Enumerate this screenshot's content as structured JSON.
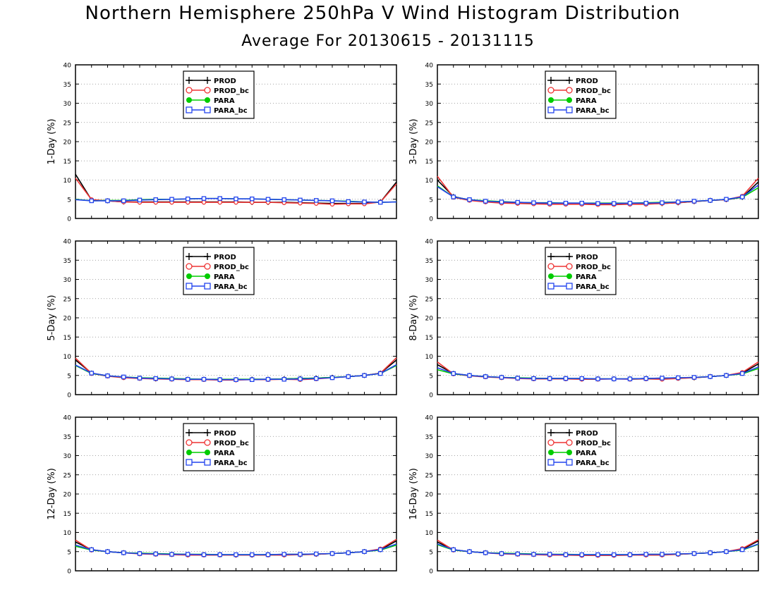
{
  "header": {
    "title": "Northern Hemisphere 250hPa V Wind Histogram Distribution",
    "subtitle": "Average For 20130615 - 20131115"
  },
  "legend_entries": [
    {
      "label": "PROD",
      "color": "#000000",
      "marker": "plus"
    },
    {
      "label": "PROD_bc",
      "color": "#ee3333",
      "marker": "open-circle"
    },
    {
      "label": "PARA",
      "color": "#00cc00",
      "marker": "filled-circle"
    },
    {
      "label": "PARA_bc",
      "color": "#2244ee",
      "marker": "open-square"
    }
  ],
  "chart_data": [
    {
      "type": "line",
      "ylabel": "1-Day (%)",
      "ylim": [
        0,
        40
      ],
      "yticks": [
        0,
        5,
        10,
        15,
        20,
        25,
        30,
        35,
        40
      ],
      "grid": "horizontal dotted",
      "legend_position": "top-left",
      "x": [
        1,
        2,
        3,
        4,
        5,
        6,
        7,
        8,
        9,
        10,
        11,
        12,
        13,
        14,
        15,
        16,
        17,
        18,
        19,
        20,
        21
      ],
      "series": [
        {
          "name": "PROD",
          "values": [
            11.5,
            4.8,
            4.6,
            4.3,
            4.3,
            4.3,
            4.3,
            4.3,
            4.3,
            4.3,
            4.3,
            4.2,
            4.2,
            4.2,
            4.1,
            4.0,
            3.9,
            3.9,
            3.9,
            4.3,
            9.5
          ]
        },
        {
          "name": "PROD_bc",
          "values": [
            10.5,
            4.9,
            4.6,
            4.3,
            4.2,
            4.2,
            4.2,
            4.2,
            4.2,
            4.2,
            4.2,
            4.2,
            4.2,
            4.1,
            4.0,
            3.9,
            3.7,
            3.8,
            3.8,
            4.3,
            9.0
          ]
        },
        {
          "name": "PARA",
          "values": [
            5.0,
            4.6,
            4.7,
            4.7,
            4.9,
            5.0,
            5.0,
            5.1,
            5.2,
            5.2,
            5.1,
            5.1,
            5.0,
            4.9,
            4.8,
            4.7,
            4.6,
            4.5,
            4.3,
            4.2,
            4.3
          ]
        },
        {
          "name": "PARA_bc",
          "values": [
            4.9,
            4.6,
            4.6,
            4.6,
            4.8,
            4.9,
            5.0,
            5.1,
            5.2,
            5.2,
            5.1,
            5.1,
            5.0,
            4.9,
            4.8,
            4.7,
            4.6,
            4.4,
            4.3,
            4.2,
            4.3
          ]
        }
      ]
    },
    {
      "type": "line",
      "ylabel": "3-Day (%)",
      "ylim": [
        0,
        40
      ],
      "yticks": [
        0,
        5,
        10,
        15,
        20,
        25,
        30,
        35,
        40
      ],
      "grid": "horizontal dotted",
      "legend_position": "top-left",
      "x": [
        1,
        2,
        3,
        4,
        5,
        6,
        7,
        8,
        9,
        10,
        11,
        12,
        13,
        14,
        15,
        16,
        17,
        18,
        19,
        20,
        21
      ],
      "series": [
        {
          "name": "PROD",
          "values": [
            10.0,
            5.7,
            4.8,
            4.4,
            4.1,
            4.0,
            3.9,
            3.8,
            3.8,
            3.8,
            3.7,
            3.7,
            3.8,
            3.8,
            3.9,
            4.1,
            4.4,
            4.7,
            4.9,
            5.5,
            9.5
          ]
        },
        {
          "name": "PROD_bc",
          "values": [
            11.0,
            5.5,
            4.7,
            4.3,
            4.0,
            3.9,
            3.8,
            3.7,
            3.7,
            3.7,
            3.6,
            3.6,
            3.7,
            3.7,
            3.9,
            4.1,
            4.4,
            4.7,
            4.9,
            5.8,
            10.5
          ]
        },
        {
          "name": "PARA",
          "values": [
            8.5,
            5.6,
            4.9,
            4.6,
            4.4,
            4.2,
            4.1,
            4.1,
            4.0,
            4.0,
            4.0,
            4.0,
            4.0,
            4.1,
            4.2,
            4.3,
            4.5,
            4.7,
            5.0,
            5.5,
            8.0
          ]
        },
        {
          "name": "PARA_bc",
          "values": [
            8.3,
            5.6,
            4.9,
            4.5,
            4.3,
            4.2,
            4.1,
            4.0,
            4.0,
            4.0,
            3.9,
            3.9,
            4.0,
            4.0,
            4.1,
            4.3,
            4.5,
            4.7,
            5.0,
            5.6,
            8.7
          ]
        }
      ]
    },
    {
      "type": "line",
      "ylabel": "5-Day (%)",
      "ylim": [
        0,
        40
      ],
      "yticks": [
        0,
        5,
        10,
        15,
        20,
        25,
        30,
        35,
        40
      ],
      "grid": "horizontal dotted",
      "legend_position": "top-left",
      "x": [
        1,
        2,
        3,
        4,
        5,
        6,
        7,
        8,
        9,
        10,
        11,
        12,
        13,
        14,
        15,
        16,
        17,
        18,
        19,
        20,
        21
      ],
      "series": [
        {
          "name": "PROD",
          "values": [
            9.0,
            5.6,
            4.9,
            4.5,
            4.3,
            4.1,
            4.1,
            4.0,
            4.0,
            3.9,
            3.9,
            4.0,
            4.0,
            4.1,
            4.2,
            4.3,
            4.5,
            4.7,
            5.0,
            5.6,
            9.0
          ]
        },
        {
          "name": "PROD_bc",
          "values": [
            9.5,
            5.5,
            4.8,
            4.4,
            4.2,
            4.1,
            4.0,
            3.9,
            3.9,
            3.8,
            3.8,
            3.9,
            3.9,
            4.0,
            3.9,
            4.1,
            4.4,
            4.7,
            5.0,
            5.6,
            9.6
          ]
        },
        {
          "name": "PARA",
          "values": [
            7.6,
            5.5,
            4.9,
            4.6,
            4.4,
            4.3,
            4.2,
            4.1,
            4.0,
            4.0,
            4.0,
            4.0,
            4.0,
            4.1,
            4.2,
            4.3,
            4.5,
            4.7,
            5.0,
            5.5,
            7.6
          ]
        },
        {
          "name": "PARA_bc",
          "values": [
            7.7,
            5.6,
            4.9,
            4.6,
            4.3,
            4.2,
            4.1,
            4.0,
            4.0,
            3.9,
            3.9,
            3.9,
            4.0,
            4.0,
            4.1,
            4.2,
            4.4,
            4.7,
            5.0,
            5.5,
            7.8
          ]
        }
      ]
    },
    {
      "type": "line",
      "ylabel": "8-Day (%)",
      "ylim": [
        0,
        40
      ],
      "yticks": [
        0,
        5,
        10,
        15,
        20,
        25,
        30,
        35,
        40
      ],
      "grid": "horizontal dotted",
      "legend_position": "top-left",
      "x": [
        1,
        2,
        3,
        4,
        5,
        6,
        7,
        8,
        9,
        10,
        11,
        12,
        13,
        14,
        15,
        16,
        17,
        18,
        19,
        20,
        21
      ],
      "series": [
        {
          "name": "PROD",
          "values": [
            7.8,
            5.5,
            5.0,
            4.7,
            4.5,
            4.3,
            4.2,
            4.2,
            4.2,
            4.1,
            4.1,
            4.1,
            4.1,
            4.2,
            4.2,
            4.3,
            4.4,
            4.7,
            5.0,
            5.6,
            8.0
          ]
        },
        {
          "name": "PROD_bc",
          "values": [
            8.5,
            5.4,
            4.9,
            4.6,
            4.4,
            4.2,
            4.1,
            4.1,
            4.1,
            4.0,
            4.0,
            4.1,
            4.0,
            4.1,
            4.0,
            4.2,
            4.4,
            4.7,
            5.0,
            5.8,
            8.5
          ]
        },
        {
          "name": "PARA",
          "values": [
            6.5,
            5.4,
            5.0,
            4.7,
            4.5,
            4.4,
            4.3,
            4.2,
            4.2,
            4.2,
            4.1,
            4.1,
            4.1,
            4.2,
            4.3,
            4.4,
            4.5,
            4.7,
            5.0,
            5.4,
            6.8
          ]
        },
        {
          "name": "PARA_bc",
          "values": [
            7.0,
            5.5,
            5.0,
            4.7,
            4.5,
            4.3,
            4.2,
            4.2,
            4.2,
            4.2,
            4.1,
            4.1,
            4.1,
            4.2,
            4.3,
            4.4,
            4.5,
            4.7,
            5.0,
            5.5,
            7.2
          ]
        }
      ]
    },
    {
      "type": "line",
      "ylabel": "12-Day (%)",
      "ylim": [
        0,
        40
      ],
      "yticks": [
        0,
        5,
        10,
        15,
        20,
        25,
        30,
        35,
        40
      ],
      "grid": "horizontal dotted",
      "legend_position": "top-left",
      "x": [
        1,
        2,
        3,
        4,
        5,
        6,
        7,
        8,
        9,
        10,
        11,
        12,
        13,
        14,
        15,
        16,
        17,
        18,
        19,
        20,
        21
      ],
      "series": [
        {
          "name": "PROD",
          "values": [
            7.5,
            5.5,
            5.0,
            4.7,
            4.5,
            4.4,
            4.3,
            4.2,
            4.2,
            4.2,
            4.1,
            4.1,
            4.2,
            4.2,
            4.2,
            4.3,
            4.5,
            4.7,
            5.0,
            5.5,
            7.8
          ]
        },
        {
          "name": "PROD_bc",
          "values": [
            8.0,
            5.4,
            5.0,
            4.7,
            4.4,
            4.3,
            4.2,
            4.1,
            4.1,
            4.1,
            4.1,
            4.1,
            4.1,
            4.1,
            4.2,
            4.3,
            4.5,
            4.7,
            5.0,
            5.7,
            8.2
          ]
        },
        {
          "name": "PARA",
          "values": [
            6.4,
            5.4,
            5.0,
            4.7,
            4.6,
            4.5,
            4.4,
            4.3,
            4.3,
            4.2,
            4.2,
            4.2,
            4.2,
            4.3,
            4.3,
            4.4,
            4.5,
            4.7,
            5.0,
            5.4,
            6.7
          ]
        },
        {
          "name": "PARA_bc",
          "values": [
            6.7,
            5.5,
            5.0,
            4.7,
            4.5,
            4.4,
            4.3,
            4.3,
            4.2,
            4.2,
            4.2,
            4.2,
            4.2,
            4.3,
            4.3,
            4.4,
            4.5,
            4.7,
            5.0,
            5.5,
            7.0
          ]
        }
      ]
    },
    {
      "type": "line",
      "ylabel": "16-Day (%)",
      "ylim": [
        0,
        40
      ],
      "yticks": [
        0,
        5,
        10,
        15,
        20,
        25,
        30,
        35,
        40
      ],
      "grid": "horizontal dotted",
      "legend_position": "top-left",
      "x": [
        1,
        2,
        3,
        4,
        5,
        6,
        7,
        8,
        9,
        10,
        11,
        12,
        13,
        14,
        15,
        16,
        17,
        18,
        19,
        20,
        21
      ],
      "series": [
        {
          "name": "PROD",
          "values": [
            7.5,
            5.5,
            5.0,
            4.7,
            4.5,
            4.4,
            4.3,
            4.2,
            4.2,
            4.1,
            4.1,
            4.1,
            4.2,
            4.2,
            4.2,
            4.3,
            4.5,
            4.7,
            5.0,
            5.6,
            7.8
          ]
        },
        {
          "name": "PROD_bc",
          "values": [
            8.0,
            5.4,
            5.0,
            4.7,
            4.4,
            4.3,
            4.2,
            4.1,
            4.1,
            4.0,
            4.0,
            4.0,
            4.1,
            4.1,
            4.1,
            4.3,
            4.5,
            4.7,
            5.0,
            5.8,
            8.1
          ]
        },
        {
          "name": "PARA",
          "values": [
            6.8,
            5.4,
            5.0,
            4.7,
            4.6,
            4.5,
            4.4,
            4.3,
            4.3,
            4.2,
            4.2,
            4.2,
            4.2,
            4.3,
            4.3,
            4.4,
            4.5,
            4.7,
            5.0,
            5.4,
            6.9
          ]
        },
        {
          "name": "PARA_bc",
          "values": [
            7.0,
            5.5,
            5.0,
            4.7,
            4.5,
            4.4,
            4.3,
            4.3,
            4.2,
            4.2,
            4.2,
            4.2,
            4.2,
            4.3,
            4.3,
            4.4,
            4.5,
            4.7,
            5.0,
            5.5,
            7.0
          ]
        }
      ]
    }
  ]
}
